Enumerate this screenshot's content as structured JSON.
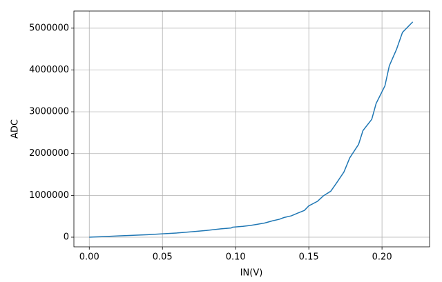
{
  "chart_data": {
    "type": "line",
    "xlabel": "IN(V)",
    "ylabel": "ADC",
    "x": [
      0,
      0.01,
      0.02,
      0.03,
      0.04,
      0.05,
      0.06,
      0.07,
      0.08,
      0.09,
      0.097,
      0.098,
      0.105,
      0.11,
      0.115,
      0.12,
      0.125,
      0.13,
      0.133,
      0.138,
      0.142,
      0.147,
      0.15,
      0.156,
      0.16,
      0.165,
      0.169,
      0.174,
      0.178,
      0.184,
      0.187,
      0.193,
      0.196,
      0.202,
      0.205,
      0.21,
      0.214,
      0.221
    ],
    "series": [
      {
        "name": "ADC",
        "color": "#1f77b4",
        "values": [
          0,
          15000,
          30000,
          45000,
          60000,
          80000,
          100000,
          130000,
          160000,
          200000,
          220000,
          240000,
          260000,
          280000,
          310000,
          340000,
          390000,
          430000,
          470000,
          510000,
          570000,
          640000,
          750000,
          860000,
          990000,
          1100000,
          1300000,
          1560000,
          1900000,
          2220000,
          2550000,
          2820000,
          3200000,
          3620000,
          4100000,
          4500000,
          4900000,
          5150000
        ]
      }
    ],
    "xlim": [
      -0.0105,
      0.2325
    ],
    "ylim": [
      -231000,
      5410000
    ],
    "xticks": [
      {
        "value": 0,
        "label": "0.00"
      },
      {
        "value": 0.05,
        "label": "0.05"
      },
      {
        "value": 0.1,
        "label": "0.10"
      },
      {
        "value": 0.15,
        "label": "0.15"
      },
      {
        "value": 0.2,
        "label": "0.20"
      }
    ],
    "yticks": [
      0,
      1000000,
      2000000,
      3000000,
      4000000,
      5000000
    ],
    "grid": true
  }
}
